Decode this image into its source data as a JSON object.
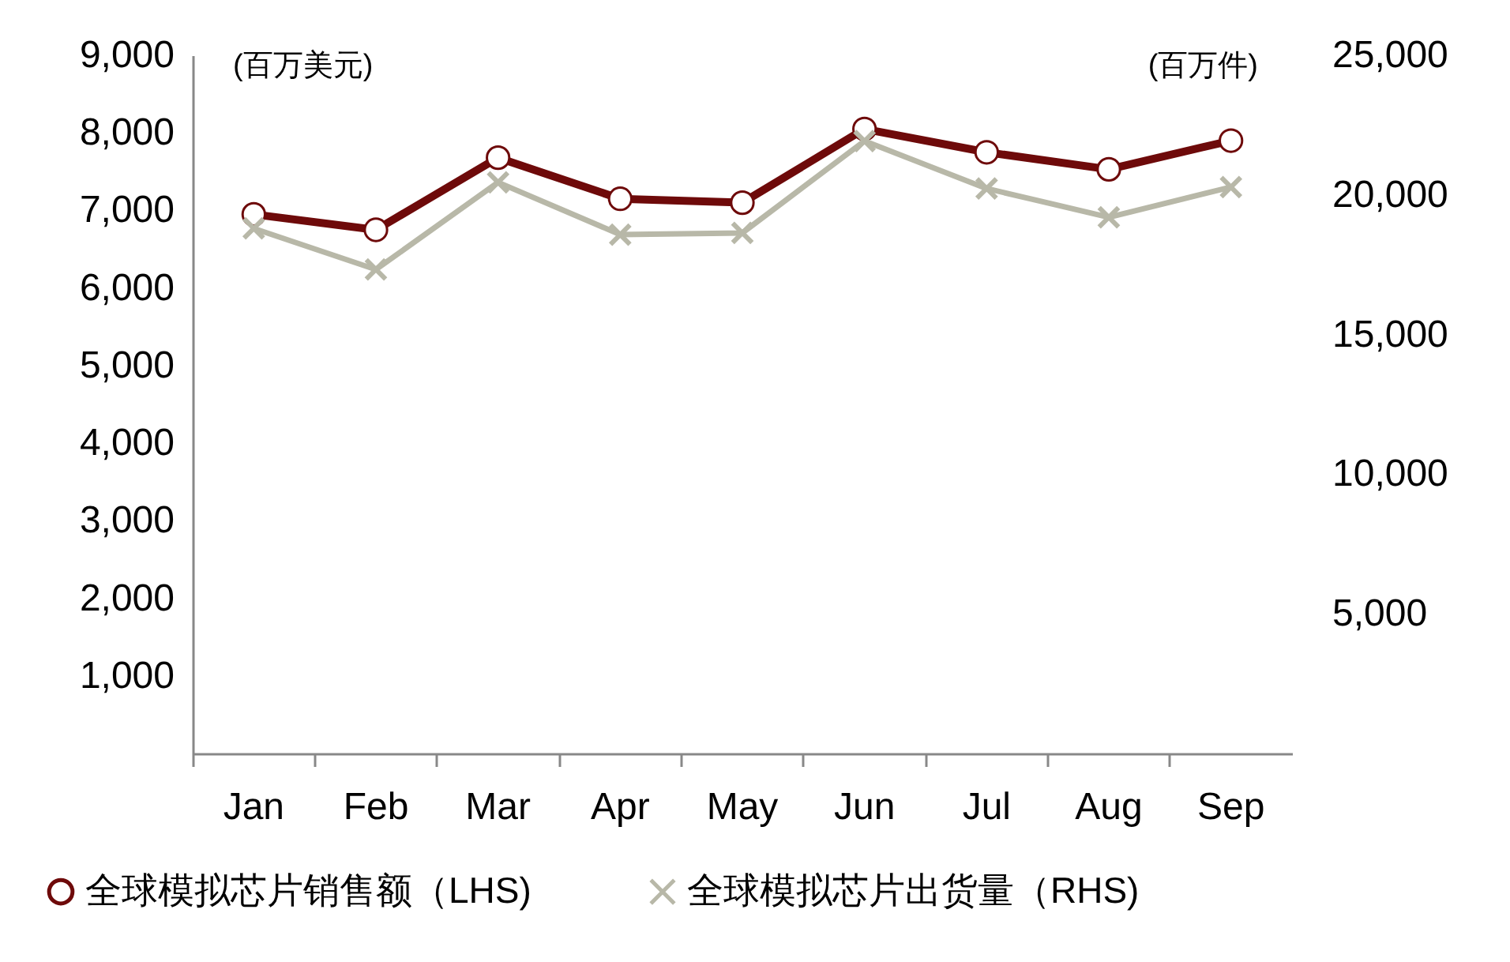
{
  "chart_data": {
    "type": "line",
    "categories": [
      "Jan",
      "Feb",
      "Mar",
      "Apr",
      "May",
      "Jun",
      "Jul",
      "Aug",
      "Sep"
    ],
    "ylabel": "(百万美元)",
    "y2label": "(百万件)",
    "ylim": [
      0,
      9000
    ],
    "yticks": [
      {
        "value": 1000,
        "label": "1,000"
      },
      {
        "value": 2000,
        "label": "2,000"
      },
      {
        "value": 3000,
        "label": "3,000"
      },
      {
        "value": 4000,
        "label": "4,000"
      },
      {
        "value": 5000,
        "label": "5,000"
      },
      {
        "value": 6000,
        "label": "6,000"
      },
      {
        "value": 7000,
        "label": "7,000"
      },
      {
        "value": 8000,
        "label": "8,000"
      },
      {
        "value": 9000,
        "label": "9,000"
      }
    ],
    "y2lim": [
      0,
      25000
    ],
    "y2ticks": [
      {
        "value": 5000,
        "label": "5,000"
      },
      {
        "value": 10000,
        "label": "10,000"
      },
      {
        "value": 15000,
        "label": "15,000"
      },
      {
        "value": 20000,
        "label": "20,000"
      },
      {
        "value": 25000,
        "label": "25,000"
      }
    ],
    "grid": false,
    "legend": "bottom",
    "series": [
      {
        "name": "全球模拟芯片销售额（LHS)",
        "color": "#6e0a0a",
        "marker": "circle",
        "values": [
          6950,
          6750,
          7680,
          7150,
          7100,
          8050,
          7750,
          7530,
          7900
        ]
      },
      {
        "name": "全球模拟芯片出货量（RHS)",
        "color": "#b8b8a8",
        "marker": "cross",
        "axis": "y2",
        "values": [
          18800,
          17330,
          20450,
          18580,
          18640,
          21930,
          20230,
          19200,
          20280
        ]
      }
    ]
  }
}
